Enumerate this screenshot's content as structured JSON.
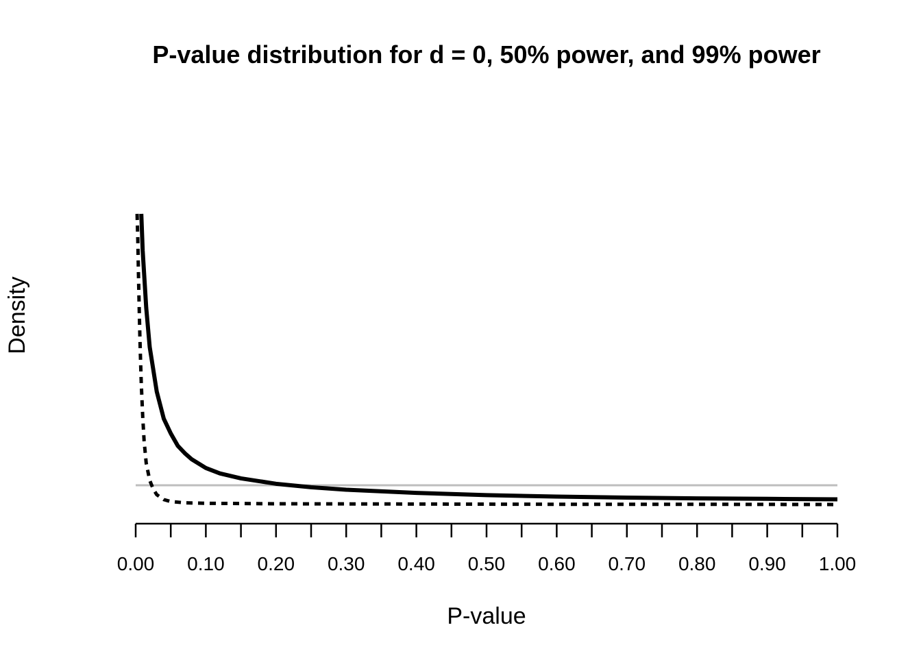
{
  "chart_data": {
    "type": "line",
    "title": "P-value distribution for d = 0, 50% power, and 99% power",
    "xlabel": "P-value",
    "ylabel": "Density",
    "xlim": [
      0,
      1
    ],
    "y_axis_ticks_shown": false,
    "grid": false,
    "legend": "none",
    "x_ticks": [
      0.0,
      0.05,
      0.1,
      0.15,
      0.2,
      0.25,
      0.3,
      0.35,
      0.4,
      0.45,
      0.5,
      0.55,
      0.6,
      0.65,
      0.7,
      0.75,
      0.8,
      0.85,
      0.9,
      0.95,
      1.0
    ],
    "x_tick_labels": [
      "0.00",
      "0.10",
      "0.20",
      "0.30",
      "0.40",
      "0.50",
      "0.60",
      "0.70",
      "0.80",
      "0.90",
      "1.00"
    ],
    "x_tick_label_values": [
      0.0,
      0.1,
      0.2,
      0.3,
      0.4,
      0.5,
      0.6,
      0.7,
      0.8,
      0.9,
      1.0
    ],
    "series": [
      {
        "style": "solid",
        "color": "#000000",
        "x": [
          0.008,
          0.01,
          0.015,
          0.02,
          0.03,
          0.04,
          0.05,
          0.06,
          0.07,
          0.08,
          0.1,
          0.12,
          0.15,
          0.2,
          0.25,
          0.3,
          0.4,
          0.5,
          0.6,
          0.7,
          0.8,
          0.9,
          1.0
        ],
        "y": [
          12.0,
          10.5,
          8.2,
          6.6,
          4.8,
          3.7,
          3.1,
          2.6,
          2.3,
          2.05,
          1.7,
          1.48,
          1.28,
          1.06,
          0.92,
          0.82,
          0.69,
          0.6,
          0.54,
          0.5,
          0.47,
          0.45,
          0.43
        ]
      },
      {
        "style": "dashed",
        "color": "#000000",
        "x": [
          0.002,
          0.003,
          0.004,
          0.005,
          0.006,
          0.007,
          0.008,
          0.01,
          0.012,
          0.015,
          0.02,
          0.025,
          0.03,
          0.04,
          0.05,
          0.07,
          0.1,
          0.2,
          0.4,
          0.6,
          0.8,
          1.0
        ],
        "y": [
          12.0,
          11.0,
          9.5,
          8.2,
          7.0,
          6.0,
          5.1,
          3.8,
          2.8,
          1.9,
          1.2,
          0.85,
          0.62,
          0.42,
          0.34,
          0.29,
          0.27,
          0.25,
          0.24,
          0.23,
          0.23,
          0.22
        ]
      },
      {
        "style": "solid",
        "color": "#bebebe",
        "x": [
          0.0,
          1.0
        ],
        "y": [
          1.0,
          1.0
        ]
      }
    ]
  }
}
